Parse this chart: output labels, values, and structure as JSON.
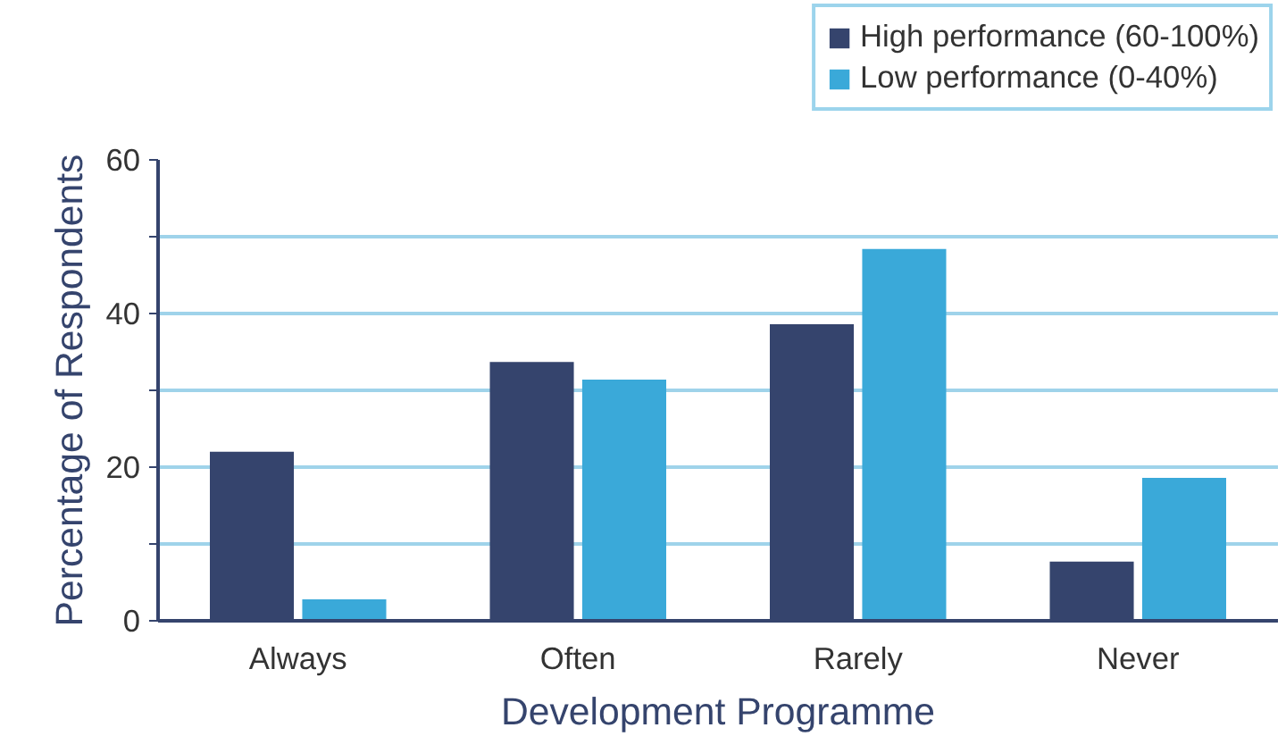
{
  "chart_data": {
    "type": "bar",
    "xlabel": "Development Programme",
    "ylabel": "Percentage of Respondents",
    "categories": [
      "Always",
      "Often",
      "Rarely",
      "Never"
    ],
    "series": [
      {
        "name": "High performance (60-100%)",
        "color": "#35446d",
        "values": [
          22,
          33.7,
          38.6,
          7.7
        ]
      },
      {
        "name": "Low performance (0-40%)",
        "color": "#3aa9d9",
        "values": [
          2.8,
          31.4,
          48.4,
          18.6
        ]
      }
    ],
    "ylim": [
      0,
      60
    ],
    "yticks": [
      0,
      {
        "value": 10,
        "label": null
      },
      20,
      {
        "value": 30,
        "label": null
      },
      40,
      {
        "value": 50,
        "label": null
      },
      60
    ],
    "grid": "y",
    "legend": "top right"
  }
}
